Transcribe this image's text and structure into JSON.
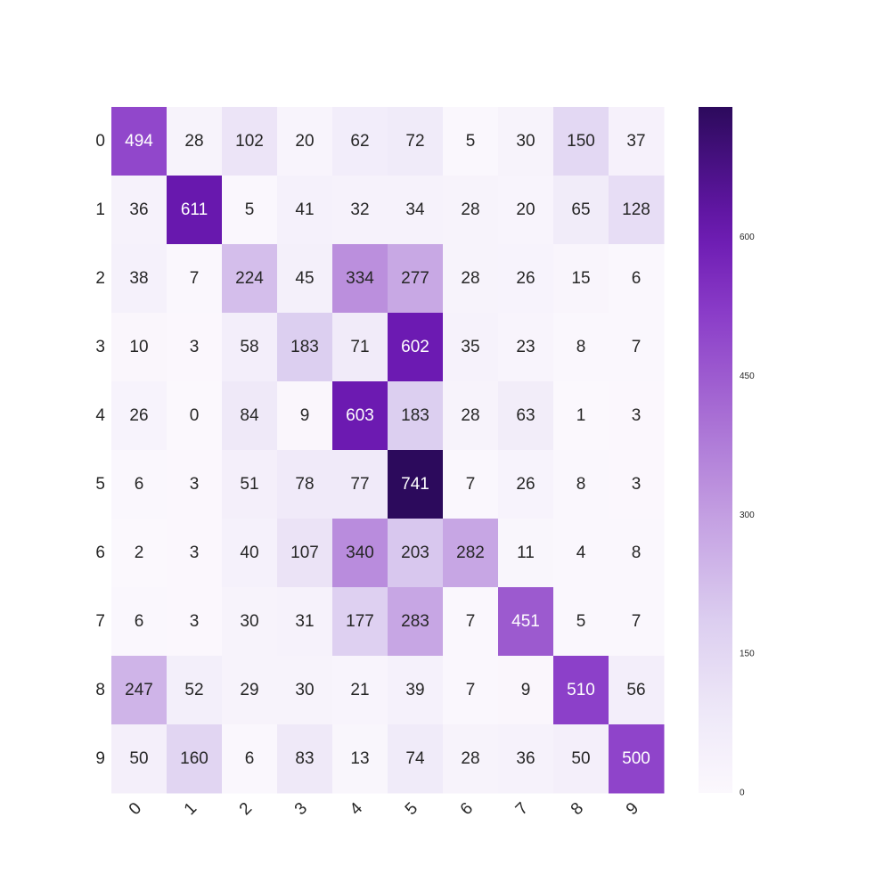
{
  "chart_data": {
    "type": "heatmap",
    "title": "",
    "xlabel": "",
    "ylabel": "",
    "x_tick_labels": [
      "0",
      "1",
      "2",
      "3",
      "4",
      "5",
      "6",
      "7",
      "8",
      "9"
    ],
    "y_tick_labels": [
      "0",
      "1",
      "2",
      "3",
      "4",
      "5",
      "6",
      "7",
      "8",
      "9"
    ],
    "values": [
      [
        494,
        28,
        102,
        20,
        62,
        72,
        5,
        30,
        150,
        37
      ],
      [
        36,
        611,
        5,
        41,
        32,
        34,
        28,
        20,
        65,
        128
      ],
      [
        38,
        7,
        224,
        45,
        334,
        277,
        28,
        26,
        15,
        6
      ],
      [
        10,
        3,
        58,
        183,
        71,
        602,
        35,
        23,
        8,
        7
      ],
      [
        26,
        0,
        84,
        9,
        603,
        183,
        28,
        63,
        1,
        3
      ],
      [
        6,
        3,
        51,
        78,
        77,
        741,
        7,
        26,
        8,
        3
      ],
      [
        2,
        3,
        40,
        107,
        340,
        203,
        282,
        11,
        4,
        8
      ],
      [
        6,
        3,
        30,
        31,
        177,
        283,
        7,
        451,
        5,
        7
      ],
      [
        247,
        52,
        29,
        30,
        21,
        39,
        7,
        9,
        510,
        56
      ],
      [
        50,
        160,
        6,
        83,
        13,
        74,
        28,
        36,
        50,
        500
      ]
    ],
    "colormap": "Purples",
    "value_range": [
      0,
      741
    ],
    "annotations": true,
    "colorbar": {
      "ticks": [
        0,
        150,
        300,
        450,
        600
      ],
      "tick_labels": [
        "0",
        "150",
        "300",
        "450",
        "600"
      ],
      "placement": "right"
    },
    "x_tick_rotation": 45,
    "grid": false
  }
}
